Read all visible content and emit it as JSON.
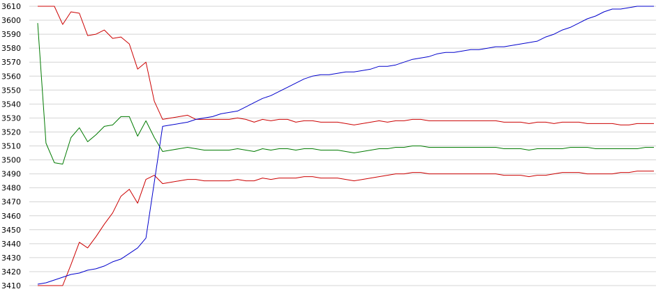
{
  "chart_data": {
    "type": "line",
    "title": "",
    "xlabel": "",
    "ylabel": "",
    "ylim": [
      3410,
      3610
    ],
    "yticks": [
      3410,
      3420,
      3430,
      3440,
      3450,
      3460,
      3470,
      3480,
      3490,
      3500,
      3510,
      3520,
      3530,
      3540,
      3550,
      3560,
      3570,
      3580,
      3590,
      3600,
      3610
    ],
    "grid": true,
    "legend": "none",
    "x": [
      1,
      2,
      3,
      4,
      5,
      6,
      7,
      8,
      9,
      10,
      11,
      12,
      13,
      14,
      15,
      16,
      17,
      18,
      19,
      20,
      21,
      22,
      23,
      24,
      25,
      26,
      27,
      28,
      29,
      30,
      31,
      32,
      33,
      34,
      35,
      36,
      37,
      38,
      39,
      40,
      41,
      42,
      43,
      44,
      45,
      46,
      47,
      48,
      49,
      50,
      51,
      52,
      53,
      54,
      55,
      56,
      57,
      58,
      59,
      60,
      61,
      62,
      63,
      64,
      65,
      66,
      67,
      68,
      69,
      70,
      71,
      72,
      73,
      74,
      75
    ],
    "series": [
      {
        "color": "#cc0000",
        "values": [
          3610,
          3610,
          3610,
          3597,
          3606,
          3605,
          3589,
          3590,
          3593,
          3587,
          3588,
          3583,
          3565,
          3570,
          3542,
          3529,
          3530,
          3531,
          3532,
          3529,
          3529,
          3529,
          3529,
          3529,
          3530,
          3529,
          3527,
          3529,
          3528,
          3529,
          3529,
          3527,
          3528,
          3528,
          3527,
          3527,
          3527,
          3526,
          3525,
          3526,
          3527,
          3528,
          3527,
          3528,
          3528,
          3529,
          3529,
          3528,
          3528,
          3528,
          3528,
          3528,
          3528,
          3528,
          3528,
          3528,
          3527,
          3527,
          3527,
          3526,
          3527,
          3527,
          3526,
          3527,
          3527,
          3527,
          3526,
          3526,
          3526,
          3526,
          3525,
          3525,
          3526,
          3526,
          3526
        ]
      },
      {
        "color": "#007a00",
        "values": [
          3598,
          3512,
          3498,
          3497,
          3516,
          3523,
          3513,
          3518,
          3524,
          3525,
          3531,
          3531,
          3517,
          3528,
          3516,
          3506,
          3507,
          3508,
          3509,
          3508,
          3507,
          3507,
          3507,
          3507,
          3508,
          3507,
          3506,
          3508,
          3507,
          3508,
          3508,
          3507,
          3508,
          3508,
          3507,
          3507,
          3507,
          3506,
          3505,
          3506,
          3507,
          3508,
          3508,
          3509,
          3509,
          3510,
          3510,
          3509,
          3509,
          3509,
          3509,
          3509,
          3509,
          3509,
          3509,
          3509,
          3508,
          3508,
          3508,
          3507,
          3508,
          3508,
          3508,
          3508,
          3509,
          3509,
          3509,
          3508,
          3508,
          3508,
          3508,
          3508,
          3508,
          3509,
          3509
        ]
      },
      {
        "color": "#cc0000",
        "values": [
          3410,
          3410,
          3410,
          3410,
          3425,
          3441,
          3437,
          3445,
          3454,
          3462,
          3474,
          3479,
          3469,
          3486,
          3489,
          3483,
          3484,
          3485,
          3486,
          3486,
          3485,
          3485,
          3485,
          3485,
          3486,
          3485,
          3485,
          3487,
          3486,
          3487,
          3487,
          3487,
          3488,
          3488,
          3487,
          3487,
          3487,
          3486,
          3485,
          3486,
          3487,
          3488,
          3489,
          3490,
          3490,
          3491,
          3491,
          3490,
          3490,
          3490,
          3490,
          3490,
          3490,
          3490,
          3490,
          3490,
          3489,
          3489,
          3489,
          3488,
          3489,
          3489,
          3490,
          3491,
          3491,
          3491,
          3490,
          3490,
          3490,
          3490,
          3491,
          3491,
          3492,
          3492,
          3492
        ]
      },
      {
        "color": "#0000cc",
        "values": [
          3411,
          3412,
          3414,
          3416,
          3418,
          3419,
          3421,
          3422,
          3424,
          3427,
          3429,
          3433,
          3437,
          3444,
          3484,
          3524,
          3525,
          3526,
          3527,
          3529,
          3530,
          3531,
          3533,
          3534,
          3535,
          3538,
          3541,
          3544,
          3546,
          3549,
          3552,
          3555,
          3558,
          3560,
          3561,
          3561,
          3562,
          3563,
          3563,
          3564,
          3565,
          3567,
          3567,
          3568,
          3570,
          3572,
          3573,
          3574,
          3576,
          3577,
          3577,
          3578,
          3579,
          3579,
          3580,
          3581,
          3581,
          3582,
          3583,
          3584,
          3585,
          3588,
          3590,
          3593,
          3595,
          3598,
          3601,
          3603,
          3606,
          3608,
          3608,
          3609,
          3610,
          3610,
          3610
        ]
      }
    ]
  }
}
